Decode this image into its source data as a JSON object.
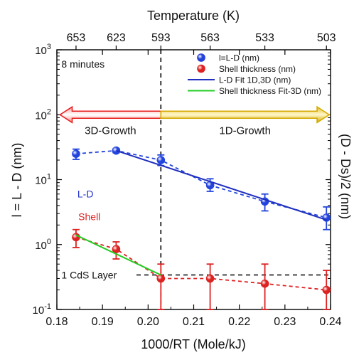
{
  "chart_data": {
    "type": "scatter",
    "xlabel": "1000/RT (Mole/kJ)",
    "ylabel_left": "l = L - D (nm)",
    "ylabel_right": "(D - Ds)/2 (nm)",
    "top_axis_label": "Temperature (K)",
    "xlim": [
      0.18,
      0.24
    ],
    "x_ticks": [
      0.18,
      0.19,
      0.2,
      0.21,
      0.22,
      0.23,
      0.24
    ],
    "x_tick_labels": [
      "0.18",
      "0.19",
      "0.20",
      "0.21",
      "0.22",
      "0.23",
      "0.24"
    ],
    "ylim": [
      0.1,
      1000
    ],
    "y_scale": "log",
    "y_ticks": [
      {
        "value": 0.1,
        "base": "10",
        "exp": "-1"
      },
      {
        "value": 1,
        "base": "10",
        "exp": "0"
      },
      {
        "value": 10,
        "base": "10",
        "exp": "1"
      },
      {
        "value": 100,
        "base": "10",
        "exp": "2"
      },
      {
        "value": 1000,
        "base": "10",
        "exp": "3"
      }
    ],
    "top_ticks": [
      {
        "label": "653",
        "x": 0.1842
      },
      {
        "label": "623",
        "x": 0.193
      },
      {
        "label": "593",
        "x": 0.2028
      },
      {
        "label": "563",
        "x": 0.2136
      },
      {
        "label": "533",
        "x": 0.2256
      },
      {
        "label": "503",
        "x": 0.2391
      }
    ],
    "legend_position": "top-right",
    "legend": [
      {
        "label": "l=L-D (nm)",
        "kind": "marker",
        "color": "#2222cc"
      },
      {
        "label": "Shell thickness (nm)",
        "kind": "marker",
        "color": "#dd2222"
      },
      {
        "label": "L-D Fit 1D,3D (nm)",
        "kind": "line",
        "color": "#1f2fbf"
      },
      {
        "label": "Shell thickness Fit-3D (nm)",
        "kind": "line",
        "color": "#22cc22"
      }
    ],
    "series": [
      {
        "name": "l=L-D (nm)",
        "color": "#2244dd",
        "points": [
          {
            "x": 0.1842,
            "y": 25,
            "err_lo": 20.5,
            "err_hi": 29.5
          },
          {
            "x": 0.193,
            "y": 28,
            "err_lo": 26,
            "err_hi": 30
          },
          {
            "x": 0.2028,
            "y": 20,
            "err_lo": 16.5,
            "err_hi": 24
          },
          {
            "x": 0.2136,
            "y": 8.2,
            "err_lo": 6.6,
            "err_hi": 10.3
          },
          {
            "x": 0.2256,
            "y": 4.6,
            "err_lo": 3.3,
            "err_hi": 6.0
          },
          {
            "x": 0.2391,
            "y": 2.6,
            "err_lo": 1.7,
            "err_hi": 3.8
          }
        ]
      },
      {
        "name": "Shell thickness (nm)",
        "color": "#dd2222",
        "points": [
          {
            "x": 0.1842,
            "y": 1.3,
            "err_lo": 0.9,
            "err_hi": 1.7
          },
          {
            "x": 0.193,
            "y": 0.85,
            "err_lo": 0.6,
            "err_hi": 1.1
          },
          {
            "x": 0.2028,
            "y": 0.3,
            "err_lo": 0.1,
            "err_hi": 0.5
          },
          {
            "x": 0.2136,
            "y": 0.3,
            "err_lo": 0.1,
            "err_hi": 0.5
          },
          {
            "x": 0.2256,
            "y": 0.25,
            "err_lo": 0.1,
            "err_hi": 0.5
          },
          {
            "x": 0.2391,
            "y": 0.2,
            "err_lo": 0.1,
            "err_hi": 0.4
          }
        ]
      }
    ],
    "fits": [
      {
        "name": "L-D Fit 1D,3D (nm)",
        "color": "#1f2fbf",
        "points": [
          [
            0.193,
            28
          ],
          [
            0.2391,
            2.4
          ]
        ]
      },
      {
        "name": "Shell thickness Fit-3D (nm)",
        "color": "#22cc22",
        "points": [
          [
            0.1842,
            1.4
          ],
          [
            0.2028,
            0.34
          ]
        ]
      }
    ],
    "reference_lines": {
      "vertical_x": 0.2028,
      "horizontal_y": 0.34
    },
    "arrows": [
      {
        "label": "3D-Growth",
        "from_x": 0.2028,
        "to_x": 0.1807,
        "y": 100,
        "color": "#e81e1e"
      },
      {
        "label": "1D-Growth",
        "from_x": 0.2028,
        "to_x": 0.2397,
        "y": 100,
        "color": "#d4aa00"
      }
    ],
    "annotations": [
      {
        "text": "8 minutes",
        "x": 0.181,
        "y": 600,
        "color": "#111111"
      },
      {
        "text": "L-D",
        "x": 0.1845,
        "y": 6.0,
        "color": "#2233cc"
      },
      {
        "text": "Shell",
        "x": 0.1847,
        "y": 2.7,
        "color": "#dd2222"
      },
      {
        "text": "1 CdS Layer",
        "x": 0.181,
        "y": 0.34,
        "color": "#111111"
      }
    ]
  }
}
